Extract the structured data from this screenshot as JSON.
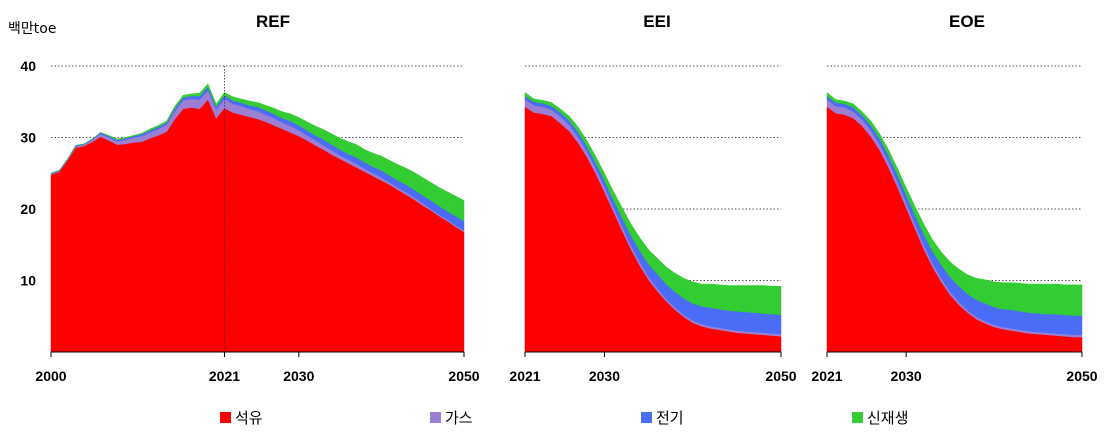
{
  "chart_data": {
    "type": "area",
    "stacked": true,
    "unit_label": "백만toe",
    "y_ticks": [
      10,
      20,
      30,
      40
    ],
    "ylim": [
      0,
      40
    ],
    "grid": "horizontal dotted",
    "legend_position": "bottom",
    "series_colors": {
      "석유": "#ff0000",
      "가스": "#9b7fd4",
      "전기": "#4a6cf7",
      "신재생": "#33cc33"
    },
    "legend": [
      "석유",
      "가스",
      "전기",
      "신재생"
    ],
    "panels": [
      {
        "title": "REF",
        "x_tick_labels": [
          "2000",
          "2021",
          "2030",
          "2050"
        ],
        "marker_year": 2021,
        "x": [
          2000,
          2001,
          2002,
          2003,
          2004,
          2005,
          2006,
          2007,
          2008,
          2009,
          2010,
          2011,
          2012,
          2013,
          2014,
          2015,
          2016,
          2017,
          2018,
          2019,
          2020,
          2021,
          2022,
          2023,
          2024,
          2025,
          2026,
          2027,
          2028,
          2029,
          2030,
          2031,
          2032,
          2033,
          2034,
          2035,
          2036,
          2037,
          2038,
          2039,
          2040,
          2041,
          2042,
          2043,
          2044,
          2045,
          2046,
          2047,
          2048,
          2049,
          2050
        ],
        "series": [
          {
            "name": "석유",
            "values": [
              24.8,
              25.2,
              26.8,
              28.6,
              28.8,
              29.4,
              30.1,
              29.6,
              29.0,
              29.1,
              29.3,
              29.4,
              29.9,
              30.3,
              30.8,
              32.6,
              34.0,
              34.2,
              34.0,
              35.3,
              32.7,
              34.1,
              33.5,
              33.2,
              32.9,
              32.6,
              32.2,
              31.7,
              31.2,
              30.7,
              30.2,
              29.6,
              28.9,
              28.3,
              27.6,
              27.0,
              26.4,
              25.8,
              25.2,
              24.6,
              24.0,
              23.4,
              22.7,
              22.0,
              21.3,
              20.5,
              19.8,
              19.0,
              18.3,
              17.5,
              16.8
            ]
          },
          {
            "name": "가스",
            "values": [
              0.1,
              0.1,
              0.1,
              0.2,
              0.2,
              0.3,
              0.4,
              0.4,
              0.5,
              0.6,
              0.7,
              0.8,
              0.8,
              0.9,
              1.0,
              1.1,
              1.2,
              1.2,
              1.3,
              1.3,
              1.2,
              1.3,
              1.2,
              1.2,
              1.1,
              1.1,
              1.0,
              1.0,
              0.9,
              0.9,
              0.8,
              0.7,
              0.7,
              0.6,
              0.6,
              0.5,
              0.5,
              0.5,
              0.4,
              0.4,
              0.4,
              0.3,
              0.3,
              0.3,
              0.3,
              0.3,
              0.2,
              0.2,
              0.2,
              0.2,
              0.2
            ]
          },
          {
            "name": "전기",
            "values": [
              0.1,
              0.1,
              0.1,
              0.1,
              0.1,
              0.1,
              0.2,
              0.2,
              0.2,
              0.2,
              0.2,
              0.3,
              0.3,
              0.3,
              0.3,
              0.4,
              0.4,
              0.4,
              0.5,
              0.5,
              0.4,
              0.5,
              0.5,
              0.5,
              0.5,
              0.6,
              0.6,
              0.6,
              0.6,
              0.7,
              0.7,
              0.7,
              0.7,
              0.8,
              0.8,
              0.8,
              0.8,
              0.9,
              0.9,
              0.9,
              1.0,
              1.0,
              1.0,
              1.1,
              1.1,
              1.1,
              1.2,
              1.2,
              1.2,
              1.3,
              1.3
            ]
          },
          {
            "name": "신재생",
            "values": [
              0.0,
              0.0,
              0.0,
              0.0,
              0.0,
              0.0,
              0.0,
              0.1,
              0.1,
              0.1,
              0.1,
              0.1,
              0.2,
              0.2,
              0.2,
              0.3,
              0.3,
              0.3,
              0.4,
              0.4,
              0.4,
              0.4,
              0.5,
              0.5,
              0.6,
              0.6,
              0.7,
              0.8,
              0.9,
              1.0,
              1.1,
              1.2,
              1.3,
              1.4,
              1.5,
              1.6,
              1.7,
              1.8,
              1.8,
              1.9,
              2.0,
              2.1,
              2.2,
              2.3,
              2.4,
              2.5,
              2.5,
              2.6,
              2.7,
              2.8,
              2.9
            ]
          }
        ]
      },
      {
        "title": "EEI",
        "x_tick_labels": [
          "2021",
          "2030",
          "2050"
        ],
        "x": [
          2021,
          2022,
          2023,
          2024,
          2025,
          2026,
          2027,
          2028,
          2029,
          2030,
          2031,
          2032,
          2033,
          2034,
          2035,
          2036,
          2037,
          2038,
          2039,
          2040,
          2041,
          2042,
          2043,
          2044,
          2045,
          2046,
          2047,
          2048,
          2049,
          2050
        ],
        "series": [
          {
            "name": "석유",
            "values": [
              34.3,
              33.5,
              33.3,
              33.0,
              32.0,
              30.9,
              29.3,
              27.3,
              25.0,
              22.4,
              19.7,
              17.0,
              14.4,
              12.1,
              10.1,
              8.5,
              7.1,
              5.9,
              4.9,
              4.1,
              3.6,
              3.3,
              3.1,
              2.9,
              2.7,
              2.6,
              2.5,
              2.4,
              2.3,
              2.2
            ]
          },
          {
            "name": "가스",
            "values": [
              1.0,
              1.0,
              1.0,
              0.9,
              0.9,
              0.9,
              0.8,
              0.8,
              0.7,
              0.7,
              0.6,
              0.6,
              0.5,
              0.5,
              0.4,
              0.4,
              0.3,
              0.3,
              0.3,
              0.3,
              0.3,
              0.3,
              0.3,
              0.3,
              0.3,
              0.3,
              0.3,
              0.3,
              0.3,
              0.3
            ]
          },
          {
            "name": "전기",
            "values": [
              0.5,
              0.5,
              0.5,
              0.5,
              0.6,
              0.6,
              0.7,
              0.7,
              0.8,
              0.9,
              1.0,
              1.2,
              1.4,
              1.6,
              1.8,
              2.0,
              2.1,
              2.2,
              2.3,
              2.4,
              2.5,
              2.6,
              2.6,
              2.6,
              2.7,
              2.7,
              2.7,
              2.7,
              2.7,
              2.7
            ]
          },
          {
            "name": "신재생",
            "values": [
              0.5,
              0.4,
              0.4,
              0.5,
              0.5,
              0.6,
              0.7,
              0.8,
              0.9,
              1.0,
              1.2,
              1.4,
              1.6,
              1.8,
              2.0,
              2.2,
              2.4,
              2.6,
              2.8,
              3.0,
              3.1,
              3.3,
              3.4,
              3.5,
              3.6,
              3.7,
              3.8,
              3.9,
              3.9,
              4.0
            ]
          }
        ]
      },
      {
        "title": "EOE",
        "x_tick_labels": [
          "2021",
          "2030",
          "2050"
        ],
        "x": [
          2021,
          2022,
          2023,
          2024,
          2025,
          2026,
          2027,
          2028,
          2029,
          2030,
          2031,
          2032,
          2033,
          2034,
          2035,
          2036,
          2037,
          2038,
          2039,
          2040,
          2041,
          2042,
          2043,
          2044,
          2045,
          2046,
          2047,
          2048,
          2049,
          2050
        ],
        "series": [
          {
            "name": "석유",
            "values": [
              34.3,
              33.4,
              33.2,
              32.7,
              31.6,
              30.1,
              28.2,
              25.8,
              23.1,
              20.2,
              17.3,
              14.4,
              11.9,
              9.8,
              8.0,
              6.6,
              5.5,
              4.6,
              4.0,
              3.5,
              3.2,
              3.0,
              2.8,
              2.6,
              2.5,
              2.4,
              2.3,
              2.2,
              2.1,
              2.1
            ]
          },
          {
            "name": "가스",
            "values": [
              1.0,
              1.0,
              1.0,
              0.9,
              0.9,
              0.9,
              0.8,
              0.8,
              0.7,
              0.7,
              0.6,
              0.6,
              0.5,
              0.5,
              0.4,
              0.4,
              0.3,
              0.3,
              0.3,
              0.3,
              0.3,
              0.3,
              0.3,
              0.3,
              0.3,
              0.3,
              0.3,
              0.3,
              0.3,
              0.3
            ]
          },
          {
            "name": "전기",
            "values": [
              0.5,
              0.5,
              0.5,
              0.6,
              0.6,
              0.7,
              0.8,
              0.9,
              1.0,
              1.1,
              1.3,
              1.5,
              1.7,
              1.9,
              2.1,
              2.2,
              2.3,
              2.4,
              2.5,
              2.5,
              2.5,
              2.6,
              2.6,
              2.6,
              2.6,
              2.6,
              2.7,
              2.7,
              2.7,
              2.7
            ]
          },
          {
            "name": "신재생",
            "values": [
              0.5,
              0.4,
              0.4,
              0.5,
              0.5,
              0.6,
              0.7,
              0.8,
              0.9,
              1.0,
              1.2,
              1.4,
              1.6,
              1.8,
              2.1,
              2.4,
              2.7,
              3.0,
              3.3,
              3.5,
              3.7,
              3.8,
              3.9,
              4.0,
              4.1,
              4.2,
              4.2,
              4.2,
              4.3,
              4.3
            ]
          }
        ]
      }
    ]
  }
}
